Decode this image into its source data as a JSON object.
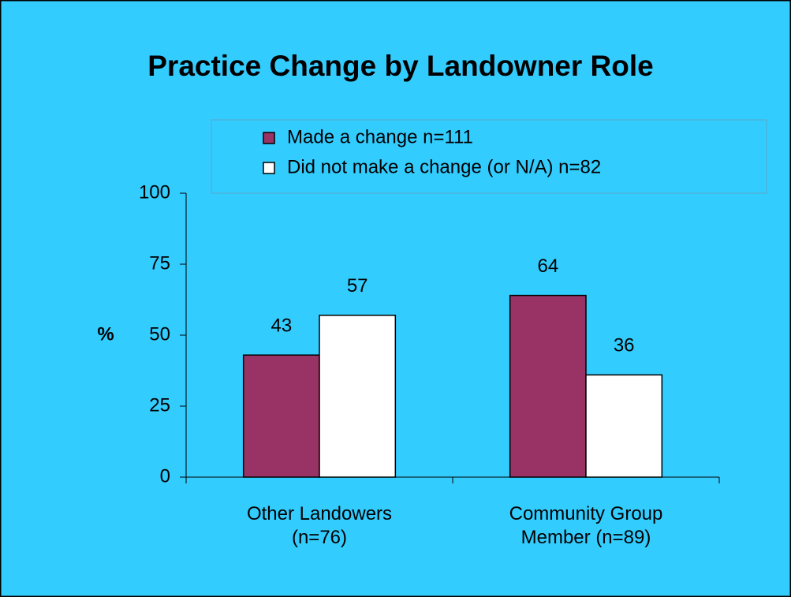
{
  "chart_data": {
    "type": "bar",
    "title": "Practice Change by Landowner Role",
    "y_label": "%",
    "categories": [
      "Other Landowers\n(n=76)",
      "Community Group\nMember (n=89)"
    ],
    "series": [
      {
        "name": "Made a change n=111",
        "color": "#993366",
        "values": [
          43,
          64
        ]
      },
      {
        "name": "Did not make a change (or N/A) n=82",
        "color": "#ffffff",
        "values": [
          57,
          36
        ]
      }
    ],
    "ylim": [
      0,
      100
    ],
    "yticks": [
      0,
      25,
      50,
      75,
      100
    ],
    "legend": "top"
  }
}
